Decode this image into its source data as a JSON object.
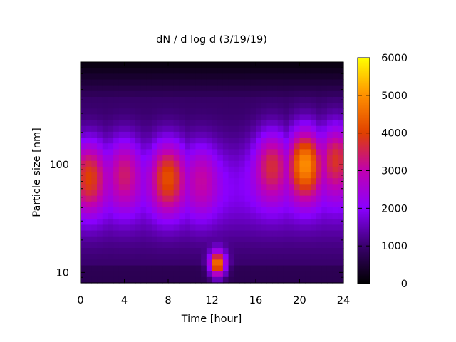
{
  "chart_data": {
    "type": "heatmap",
    "title": "dN / d log d (3/19/19)",
    "xlabel": "Time [hour]",
    "ylabel": "Particle size [nm]",
    "xlim": [
      0,
      24
    ],
    "ylim": [
      8,
      900
    ],
    "y_scale": "log",
    "x_ticks": [
      0,
      4,
      8,
      12,
      16,
      20,
      24
    ],
    "y_ticks": [
      10,
      100
    ],
    "colorbar": {
      "range": [
        0,
        6000
      ],
      "ticks": [
        0,
        1000,
        2000,
        3000,
        4000,
        5000,
        6000
      ],
      "palette": "black-blue-purple-red-orange-yellow"
    },
    "features": [
      {
        "time_hours": 0.8,
        "size_nm": 75,
        "dN_dlogd": 4000
      },
      {
        "time_hours": 4.0,
        "size_nm": 80,
        "dN_dlogd": 3400
      },
      {
        "time_hours": 8.0,
        "size_nm": 75,
        "dN_dlogd": 4200
      },
      {
        "time_hours": 11.0,
        "size_nm": 70,
        "dN_dlogd": 3100
      },
      {
        "time_hours": 12.5,
        "size_nm": 12,
        "dN_dlogd": 4900
      },
      {
        "time_hours": 17.5,
        "size_nm": 95,
        "dN_dlogd": 3700
      },
      {
        "time_hours": 20.5,
        "size_nm": 100,
        "dN_dlogd": 5000
      },
      {
        "time_hours": 23.3,
        "size_nm": 110,
        "dN_dlogd": 3800
      }
    ]
  },
  "colors": {
    "palette_stops": [
      "#000000",
      "#3a006e",
      "#8a00ff",
      "#c000b0",
      "#e04000",
      "#ff9000",
      "#ffff00"
    ]
  }
}
